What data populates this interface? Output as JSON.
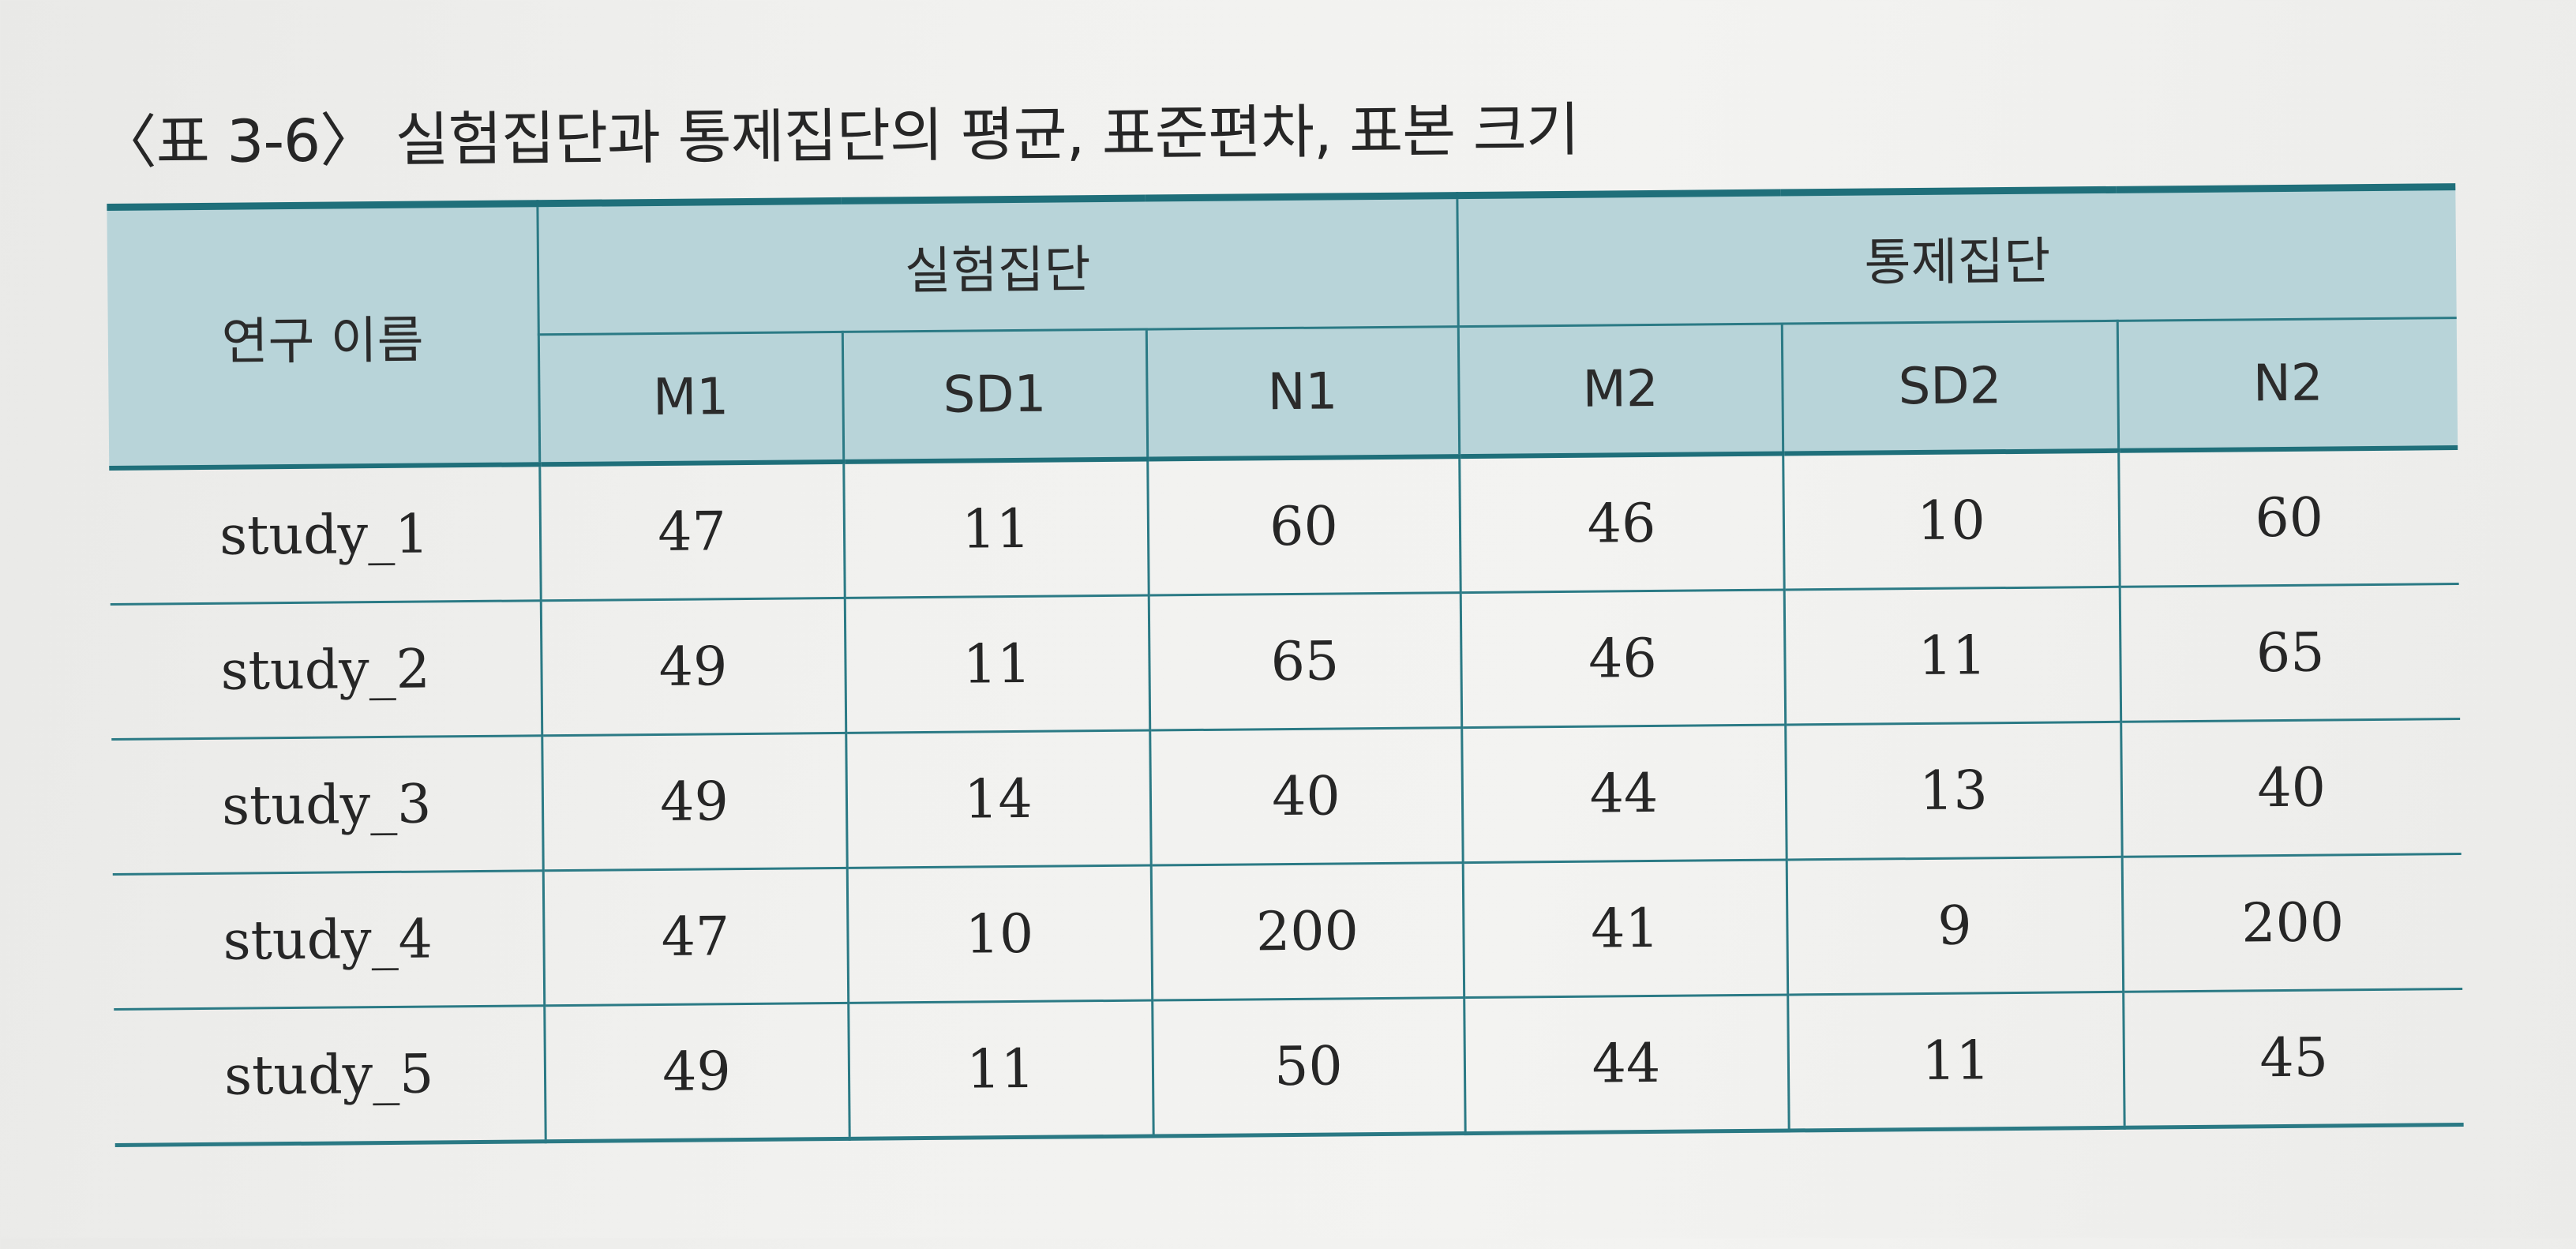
{
  "caption": "〈표 3-6〉 실험집단과 통제집단의 평균, 표준편차, 표본 크기",
  "table": {
    "row_header": "연구 이름",
    "groups": [
      "실험집단",
      "통제집단"
    ],
    "columns": [
      "M1",
      "SD1",
      "N1",
      "M2",
      "SD2",
      "N2"
    ],
    "rows": [
      {
        "name": "study_1",
        "values": [
          "47",
          "11",
          "60",
          "46",
          "10",
          "60"
        ]
      },
      {
        "name": "study_2",
        "values": [
          "49",
          "11",
          "65",
          "46",
          "11",
          "65"
        ]
      },
      {
        "name": "study_3",
        "values": [
          "49",
          "14",
          "40",
          "44",
          "13",
          "40"
        ]
      },
      {
        "name": "study_4",
        "values": [
          "47",
          "10",
          "200",
          "41",
          "9",
          "200"
        ]
      },
      {
        "name": "study_5",
        "values": [
          "49",
          "11",
          "50",
          "44",
          "11",
          "45"
        ]
      }
    ]
  },
  "colors": {
    "header_fill": "#b8d4d9",
    "rule": "#1f6f7a"
  }
}
